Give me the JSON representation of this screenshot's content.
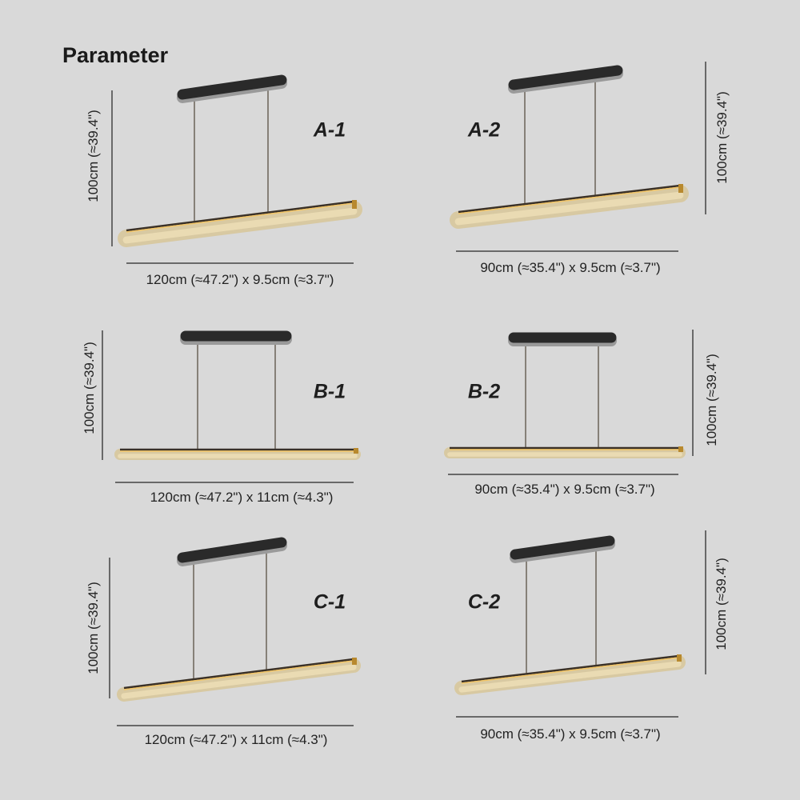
{
  "title": "Parameter",
  "variants": [
    {
      "model": "A-1",
      "height": "100cm (≈39.4\")",
      "size": "120cm (≈47.2\") x 9.5cm (≈3.7\")"
    },
    {
      "model": "A-2",
      "height": "100cm (≈39.4\")",
      "size": "90cm (≈35.4\") x 9.5cm (≈3.7\")"
    },
    {
      "model": "B-1",
      "height": "100cm (≈39.4\")",
      "size": "120cm (≈47.2\") x 11cm (≈4.3\")"
    },
    {
      "model": "B-2",
      "height": "100cm (≈39.4\")",
      "size": "90cm (≈35.4\") x 9.5cm (≈3.7\")"
    },
    {
      "model": "C-1",
      "height": "100cm (≈39.4\")",
      "size": "120cm (≈47.2\") x 11cm (≈4.3\")"
    },
    {
      "model": "C-2",
      "height": "100cm (≈39.4\")",
      "size": "90cm (≈35.4\") x 9.5cm (≈3.7\")"
    }
  ],
  "colors": {
    "background": "#d9d9d9",
    "canopy": "#2a2a2a",
    "tube": "#d8c9a2",
    "trim": "#b8892e"
  }
}
